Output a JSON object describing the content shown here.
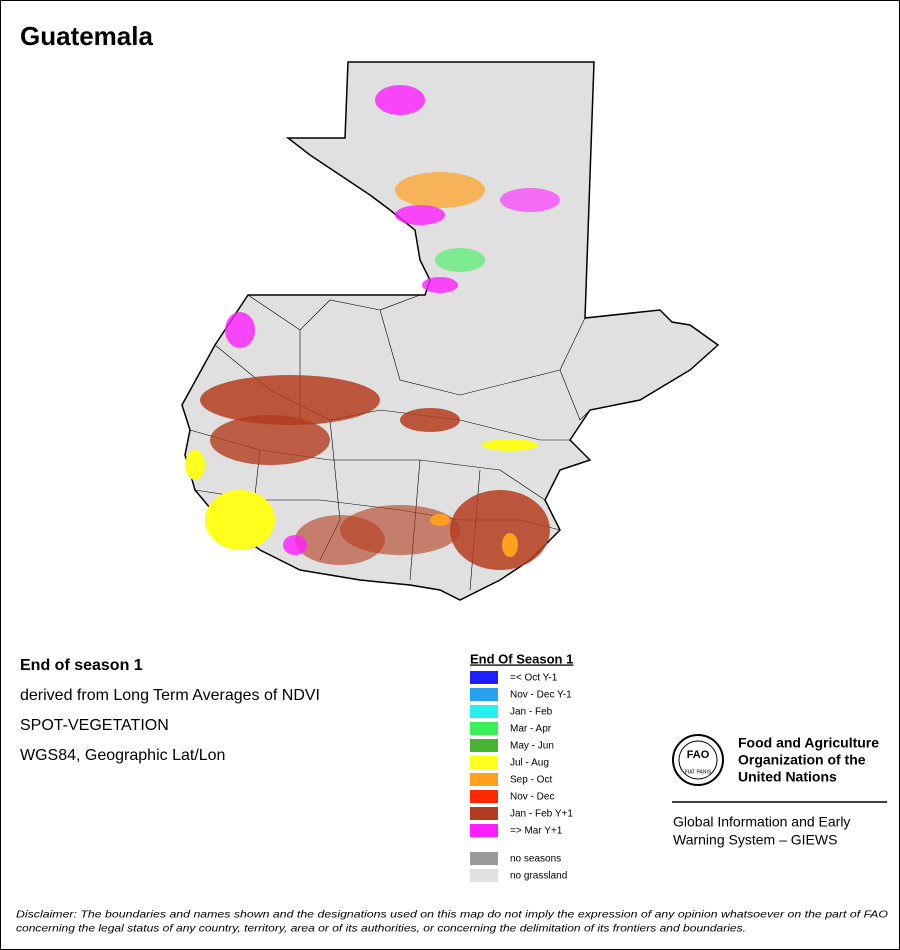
{
  "title": "Guatemala",
  "description": [
    "End of season 1",
    "derived from Long Term Averages of NDVI",
    "SPOT-VEGETATION",
    "WGS84, Geographic Lat/Lon"
  ],
  "legend": {
    "title": "End Of Season 1",
    "items": [
      {
        "label": "=< Oct Y-1",
        "color": "#1e1eff"
      },
      {
        "label": "Nov - Dec Y-1",
        "color": "#28a0f0"
      },
      {
        "label": "Jan - Feb",
        "color": "#28f0f0"
      },
      {
        "label": "Mar - Apr",
        "color": "#3cf05a"
      },
      {
        "label": "May - Jun",
        "color": "#46b432"
      },
      {
        "label": "Jul - Aug",
        "color": "#ffff1e"
      },
      {
        "label": "Sep - Oct",
        "color": "#ffa01e"
      },
      {
        "label": "Nov - Dec",
        "color": "#ff2800"
      },
      {
        "label": "Jan - Feb Y+1",
        "color": "#b43c1e"
      },
      {
        "label": "=> Mar Y+1",
        "color": "#ff1eff"
      }
    ],
    "extra": [
      {
        "label": "no seasons",
        "color": "#999999"
      },
      {
        "label": "no grassland",
        "color": "#e0e0e0"
      }
    ]
  },
  "logo": {
    "acronym": "FAO",
    "motto": "FIAT PANIS",
    "name": [
      "Food and Agriculture",
      "Organization of the",
      "United Nations"
    ],
    "system": [
      "Global Information and Early",
      "Warning System – GIEWS"
    ]
  },
  "disclaimer": [
    "Disclaimer: The boundaries and names shown and the designations used on this map do not imply the expression of any opinion whatsoever on the part of FAO",
    "concerning the legal status of any country, territory, area or of its authorities, or concerning the delimitation of its frontiers and boundaries."
  ]
}
